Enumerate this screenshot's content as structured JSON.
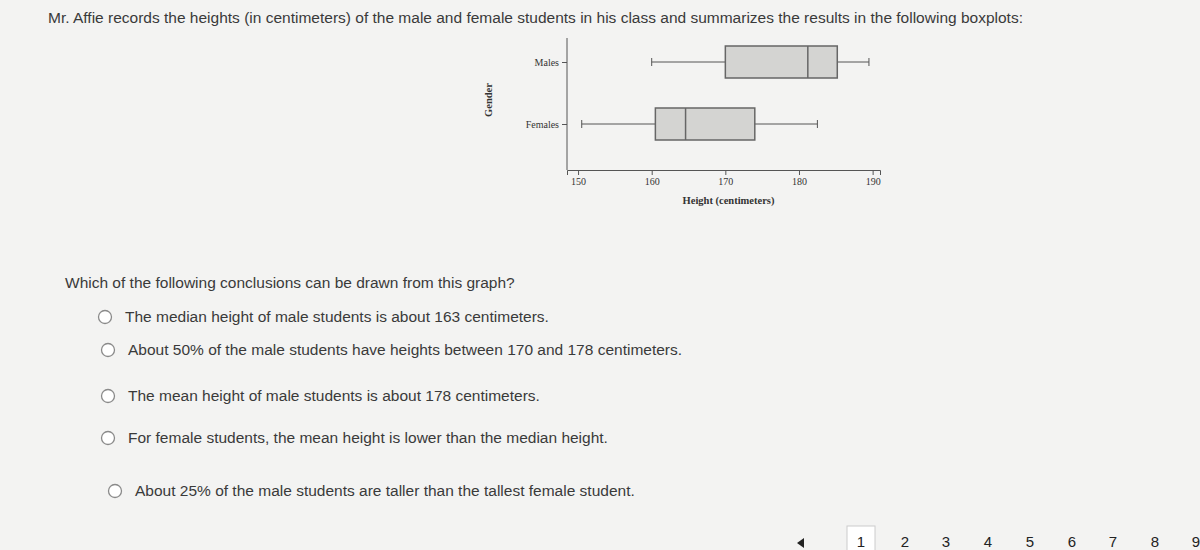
{
  "question": {
    "intro": "Mr. Affie records the heights (in centimeters) of the male and female students in his class and summarizes the results in the following boxplots:",
    "prompt": "Which of the following conclusions can be drawn from this graph?",
    "options": [
      "The median height of male students is about 163 centimeters.",
      "About 50% of the male students have heights between 170 and 178 centimeters.",
      "The mean height of male students is about 178 centimeters.",
      "For female students, the mean height is lower than the median height.",
      "About 25% of the male students are taller than the tallest female student."
    ]
  },
  "chart_data": {
    "type": "boxplot",
    "orientation": "horizontal",
    "categories": [
      "Males",
      "Females"
    ],
    "min": [
      160,
      150.5
    ],
    "q1": [
      170,
      160.5
    ],
    "median": [
      181.2,
      164.6
    ],
    "q3": [
      185.2,
      174
    ],
    "max": [
      189.5,
      182.5
    ],
    "color": "#d4d4d2",
    "x_label": "Height (centimeters)",
    "y_label": "Gender",
    "xlim": [
      148.5,
      191
    ],
    "xticks": [
      150,
      160,
      170,
      180,
      190
    ]
  },
  "pagination": {
    "pages": [
      1,
      2,
      3,
      4,
      5,
      6,
      7,
      8,
      9
    ]
  }
}
